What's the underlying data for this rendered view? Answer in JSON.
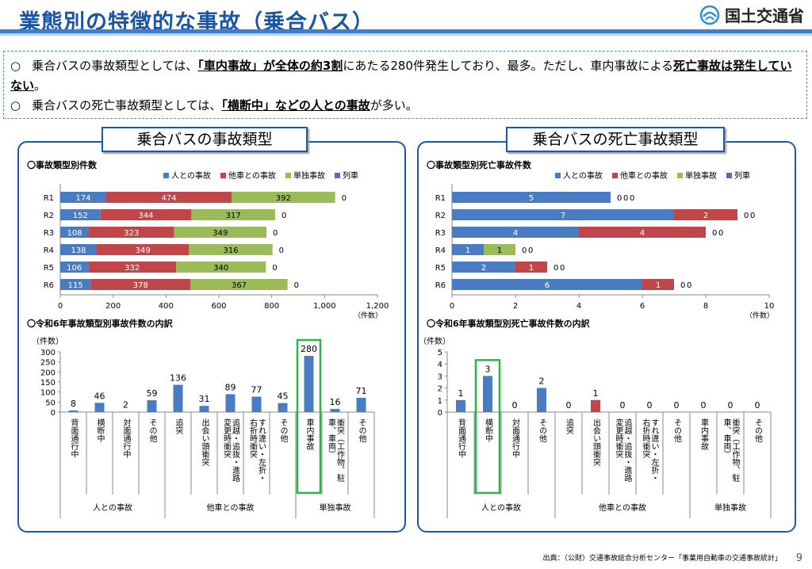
{
  "header": {
    "title": "業態別の特徴的な事故（乗合バス）",
    "ministry": "国土交通省"
  },
  "summary": {
    "line1_pre": "乗合バスの事故類型としては、",
    "line1_em1": "「車内事故」が全体の約3割",
    "line1_mid": "にあたる280件発生しており、最多。ただし、車内事故による",
    "line1_em2": "死亡事故は発生していない",
    "line1_post": "。",
    "line2_pre": "乗合バスの死亡事故類型としては、",
    "line2_em": "「横断中」などの人との事故",
    "line2_post": "が多い。"
  },
  "left_panel": {
    "title": "乗合バスの事故類型",
    "sec1": "〇事故類型別件数",
    "sec2": "〇令和6年事故類型別事故件数の内訳"
  },
  "right_panel": {
    "title": "乗合バスの死亡事故類型",
    "sec1": "〇事故類型別死亡事故件数",
    "sec2": "〇令和6年事故類型別死亡事故件数の内訳"
  },
  "colors": {
    "person": "#4a7cc4",
    "vehicle": "#c0464a",
    "single": "#9bbb59",
    "train": "#7b5ea8",
    "frame": "#1a5aa8",
    "highlight": "#2db34a"
  },
  "source": "出典：（公財）交通事故総合分析センター「事業用自動車の交通事故統計」",
  "page_number": "9",
  "chart_data": [
    {
      "type": "bar",
      "orientation": "horizontal",
      "stacked": true,
      "categories": [
        "R1",
        "R2",
        "R3",
        "R4",
        "R5",
        "R6"
      ],
      "series": [
        {
          "name": "人との事故",
          "values": [
            174,
            152,
            108,
            138,
            106,
            115
          ]
        },
        {
          "name": "他車との事故",
          "values": [
            474,
            344,
            323,
            349,
            332,
            378
          ]
        },
        {
          "name": "単独事故",
          "values": [
            392,
            317,
            349,
            316,
            340,
            367
          ]
        },
        {
          "name": "列車",
          "values": [
            0,
            0,
            0,
            0,
            0,
            0
          ]
        }
      ],
      "xlim": [
        0,
        1200
      ],
      "xticks": [
        "0",
        "200",
        "400",
        "600",
        "800",
        "1,000",
        "1,200"
      ],
      "xunit": "（件数）",
      "legend": "top"
    },
    {
      "type": "bar",
      "orientation": "horizontal",
      "stacked": true,
      "categories": [
        "R1",
        "R2",
        "R3",
        "R4",
        "R5",
        "R6"
      ],
      "series": [
        {
          "name": "人との事故",
          "values": [
            5,
            7,
            4,
            1,
            2,
            6
          ]
        },
        {
          "name": "他車との事故",
          "values": [
            0,
            2,
            4,
            0,
            1,
            1
          ]
        },
        {
          "name": "単独事故",
          "values": [
            0,
            0,
            0,
            1,
            0,
            0
          ]
        },
        {
          "name": "列車",
          "values": [
            0,
            0,
            0,
            0,
            0,
            0
          ]
        }
      ],
      "xlim": [
        0,
        10
      ],
      "xticks": [
        "0",
        "2",
        "4",
        "6",
        "8",
        "10"
      ],
      "xunit": "（件数）",
      "legend": "top"
    },
    {
      "type": "bar",
      "categories": [
        "背面通行中",
        "横断中",
        "対面通行中",
        "その他",
        "追突",
        "出会い頭衝突",
        "追越・追抜・進路変更時衝突",
        "すれ違い・左折・右折時衝突",
        "その他",
        "車内事故",
        "衝突（工作物、駐車、車両）",
        "その他"
      ],
      "values": [
        8,
        46,
        2,
        59,
        136,
        31,
        89,
        77,
        45,
        280,
        16,
        71
      ],
      "groups": [
        {
          "name": "人との事故",
          "count": 4
        },
        {
          "name": "他車との事故",
          "count": 5
        },
        {
          "name": "単独事故",
          "count": 3
        }
      ],
      "ylim": [
        0,
        300
      ],
      "yticks": [
        "0",
        "50",
        "100",
        "150",
        "200",
        "250",
        "300"
      ],
      "yunit": "（件数）",
      "highlight_index": 9
    },
    {
      "type": "bar",
      "categories": [
        "背面通行中",
        "横断中",
        "対面通行中",
        "その他",
        "追突",
        "出会い頭衝突",
        "追越・追抜・進路変更時衝突",
        "すれ違い・左折・右折時衝突",
        "その他",
        "車内事故",
        "衝突（工作物、駐車、車両）",
        "その他"
      ],
      "values": [
        1,
        3,
        0,
        2,
        0,
        1,
        0,
        0,
        0,
        0,
        0,
        0
      ],
      "bar_colors": [
        "person",
        "person",
        "person",
        "person",
        "vehicle",
        "vehicle",
        "vehicle",
        "vehicle",
        "vehicle",
        "single",
        "single",
        "single"
      ],
      "groups": [
        {
          "name": "人との事故",
          "count": 4
        },
        {
          "name": "他車との事故",
          "count": 5
        },
        {
          "name": "単独事故",
          "count": 3
        }
      ],
      "ylim": [
        0,
        5
      ],
      "yticks": [
        "0",
        "1",
        "2",
        "3",
        "4",
        "5"
      ],
      "yunit": "（件数）",
      "highlight_index": 1
    }
  ]
}
